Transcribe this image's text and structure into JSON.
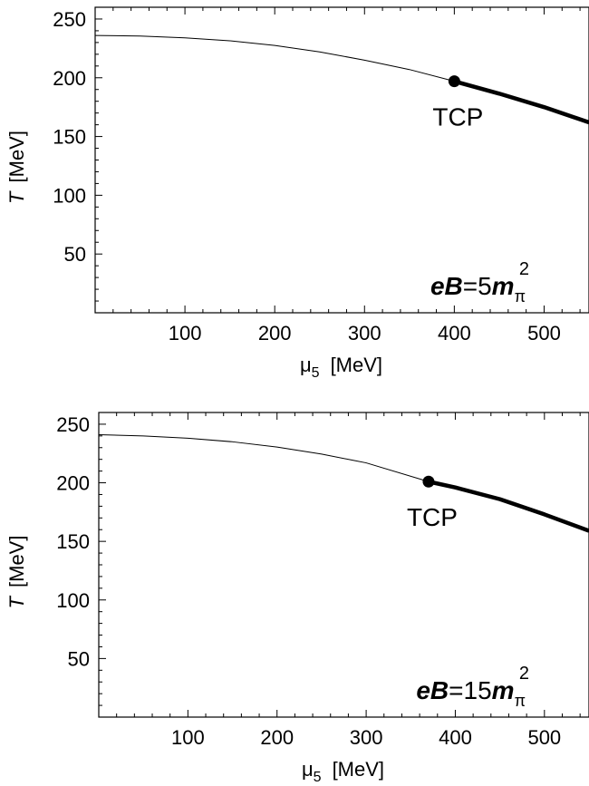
{
  "chart_data": [
    {
      "type": "line",
      "title": "",
      "xlabel": "μ5 [MeV]",
      "xlabel_symbol": "μ",
      "xlabel_sub": "5",
      "xlabel_unit": "[MeV]",
      "ylabel": "T [MeV]",
      "ylabel_symbol": "T",
      "ylabel_unit": "[MeV]",
      "xlim": [
        0,
        550
      ],
      "ylim": [
        0,
        260
      ],
      "xticks": [
        100,
        200,
        300,
        400,
        500
      ],
      "yticks": [
        50,
        100,
        150,
        200,
        250
      ],
      "grid": false,
      "annotation": {
        "prefix": "eB",
        "eq": "=",
        "coef": "5",
        "m": "m",
        "sub": "π",
        "sup": "2"
      },
      "tcp": {
        "label": "TCP",
        "x": 400,
        "y": 197
      },
      "series": [
        {
          "style": "thin",
          "x": [
            0,
            50,
            100,
            150,
            200,
            250,
            300,
            350,
            400
          ],
          "y": [
            236,
            235.5,
            234,
            231.5,
            227.5,
            222,
            215,
            207,
            197
          ]
        },
        {
          "style": "thick",
          "x": [
            400,
            450,
            500,
            550
          ],
          "y": [
            197,
            186.5,
            175,
            162
          ]
        }
      ]
    },
    {
      "type": "line",
      "title": "",
      "xlabel": "μ5 [MeV]",
      "xlabel_symbol": "μ",
      "xlabel_sub": "5",
      "xlabel_unit": "[MeV]",
      "ylabel": "T [MeV]",
      "ylabel_symbol": "T",
      "ylabel_unit": "[MeV]",
      "xlim": [
        0,
        550
      ],
      "ylim": [
        0,
        260
      ],
      "xticks": [
        100,
        200,
        300,
        400,
        500
      ],
      "yticks": [
        50,
        100,
        150,
        200,
        250
      ],
      "grid": false,
      "annotation": {
        "prefix": "eB",
        "eq": "=",
        "coef": "15",
        "m": "m",
        "sub": "π",
        "sup": "2"
      },
      "tcp": {
        "label": "TCP",
        "x": 370,
        "y": 201
      },
      "series": [
        {
          "style": "thin",
          "x": [
            0,
            50,
            100,
            150,
            200,
            250,
            300,
            370
          ],
          "y": [
            241,
            240,
            238,
            235,
            230.5,
            224.5,
            217,
            201
          ]
        },
        {
          "style": "thick",
          "x": [
            370,
            400,
            450,
            500,
            550
          ],
          "y": [
            201,
            196,
            186,
            173,
            159
          ]
        }
      ]
    }
  ]
}
